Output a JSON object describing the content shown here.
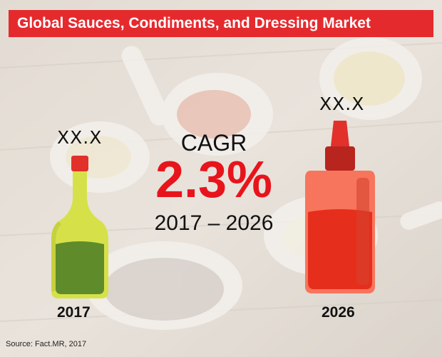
{
  "title": "Global Sauces, Condiments, and Dressing Market",
  "source": "Source: Fact.MR, 2017",
  "chart_data": {
    "type": "bar",
    "title": "Global Sauces, Condiments, and Dressing Market",
    "categories": [
      "2017",
      "2026"
    ],
    "value_labels": [
      "XX.X",
      "XX.X"
    ],
    "cagr": {
      "label": "CAGR",
      "value": "2.3%",
      "period": "2017 – 2026"
    },
    "icons": [
      "sauce-bottle-glass-icon",
      "ketchup-squeeze-bottle-icon"
    ],
    "colors": {
      "title_bar": "#e52a2e",
      "cagr_value": "#e8141c",
      "bottle_2017_body": "#d4e048",
      "bottle_2017_liquid": "#5e8a2a",
      "bottle_2026_body": "#f7735a",
      "bottle_2026_liquid": "#e62e1c"
    }
  }
}
